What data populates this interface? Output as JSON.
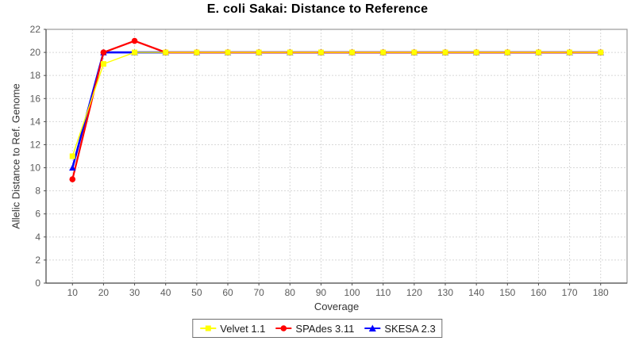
{
  "chart_data": {
    "type": "line",
    "title": "E. coli Sakai: Distance to Reference",
    "xlabel": "Coverage",
    "ylabel": "Allelic Distance to Ref. Genome",
    "x": [
      10,
      20,
      30,
      40,
      50,
      60,
      70,
      80,
      90,
      100,
      110,
      120,
      130,
      140,
      150,
      160,
      170,
      180
    ],
    "series": [
      {
        "name": "Velvet 1.1",
        "color": "#FFFF00",
        "marker": "square",
        "values": [
          11,
          19,
          20,
          20,
          20,
          20,
          20,
          20,
          20,
          20,
          20,
          20,
          20,
          20,
          20,
          20,
          20,
          20
        ]
      },
      {
        "name": "SPAdes 3.11",
        "color": "#FF0000",
        "marker": "circle",
        "values": [
          9,
          20,
          21,
          20,
          20,
          20,
          20,
          20,
          20,
          20,
          20,
          20,
          20,
          20,
          20,
          20,
          20,
          20
        ]
      },
      {
        "name": "SKESA 2.3",
        "color": "#0000FF",
        "marker": "triangle",
        "values": [
          10,
          20,
          20,
          20,
          20,
          20,
          20,
          20,
          20,
          20,
          20,
          20,
          20,
          20,
          20,
          20,
          20,
          20
        ]
      }
    ],
    "xlim": [
      1.5,
      188.5
    ],
    "ylim": [
      0,
      22
    ],
    "xticks": [
      10,
      20,
      30,
      40,
      50,
      60,
      70,
      80,
      90,
      100,
      110,
      120,
      130,
      140,
      150,
      160,
      170,
      180
    ],
    "yticks": [
      0,
      2,
      4,
      6,
      8,
      10,
      12,
      14,
      16,
      18,
      20,
      22
    ],
    "grid": true,
    "legend_position": "bottom",
    "colors": {
      "grid": "#d8d8d8",
      "plot_outline": "#9a9a9a",
      "axis_line": "#4f4f4f",
      "tick_label": "#5c5c5c",
      "title": "#000000"
    }
  }
}
